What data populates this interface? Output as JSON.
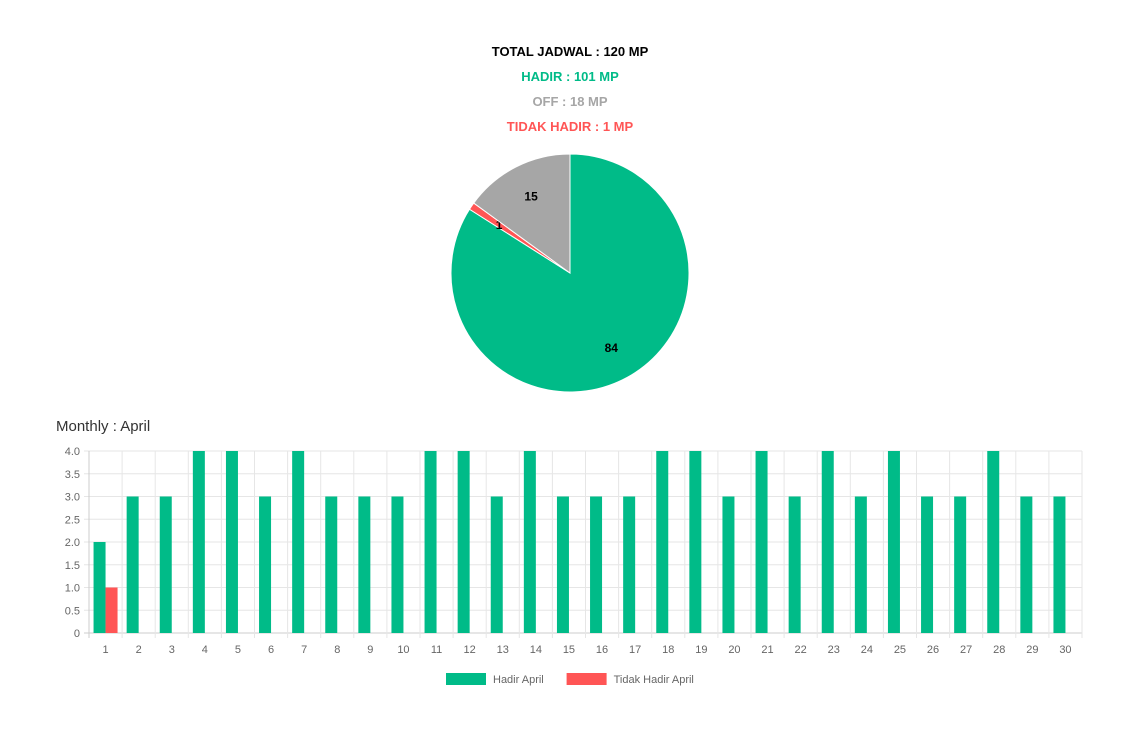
{
  "summary": {
    "total": "TOTAL JADWAL : 120 MP",
    "hadir": "HADIR : 101 MP",
    "off": "OFF : 18 MP",
    "tidak_hadir": "TIDAK HADIR : 1 MP"
  },
  "colors": {
    "total": "#000000",
    "hadir": "#00bb88",
    "off": "#a6a6a6",
    "tidak_hadir": "#ff5555",
    "grid": "#e6e6e6",
    "axis": "#cccccc"
  },
  "monthly_title": "Monthly : April",
  "chart_data": [
    {
      "type": "pie",
      "slices": [
        {
          "value": 84,
          "label": "84",
          "color": "#00bb88"
        },
        {
          "value": 1,
          "label": "1",
          "color": "#ff5555"
        },
        {
          "value": 15,
          "label": "15",
          "color": "#a6a6a6"
        }
      ]
    },
    {
      "type": "bar",
      "categories": [
        "1",
        "2",
        "3",
        "4",
        "5",
        "6",
        "7",
        "8",
        "9",
        "10",
        "11",
        "12",
        "13",
        "14",
        "15",
        "16",
        "17",
        "18",
        "19",
        "20",
        "21",
        "22",
        "23",
        "24",
        "25",
        "26",
        "27",
        "28",
        "29",
        "30"
      ],
      "series": [
        {
          "name": "Hadir April",
          "color": "#00bb88",
          "values": [
            2,
            3,
            3,
            4,
            4,
            3,
            4,
            3,
            3,
            3,
            4,
            4,
            3,
            4,
            3,
            3,
            3,
            4,
            4,
            3,
            4,
            3,
            4,
            3,
            4,
            3,
            3,
            4,
            3,
            3
          ]
        },
        {
          "name": "Tidak Hadir April",
          "color": "#ff5555",
          "values": [
            1,
            0,
            0,
            0,
            0,
            0,
            0,
            0,
            0,
            0,
            0,
            0,
            0,
            0,
            0,
            0,
            0,
            0,
            0,
            0,
            0,
            0,
            0,
            0,
            0,
            0,
            0,
            0,
            0,
            0
          ]
        }
      ],
      "ylim": [
        0,
        4
      ],
      "yticks": [
        "0",
        "0.5",
        "1.0",
        "1.5",
        "2.0",
        "2.5",
        "3.0",
        "3.5",
        "4.0"
      ],
      "grid": true,
      "legend": "bottom-center"
    }
  ]
}
